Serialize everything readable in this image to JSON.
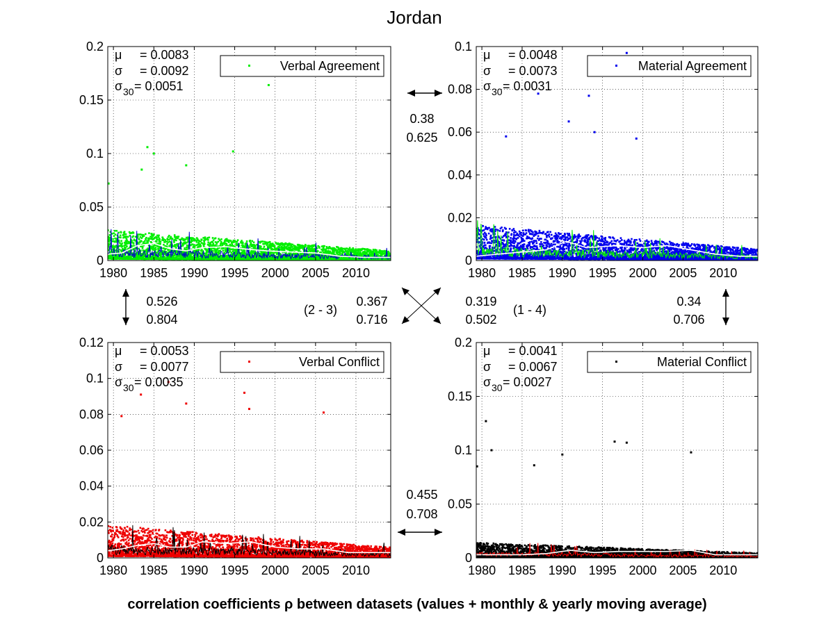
{
  "figure": {
    "title": "Jordan",
    "footer": "correlation coefficients ρ between datasets (values + monthly & yearly moving average)"
  },
  "chart_data": [
    {
      "type": "scatter",
      "id": "verbal-agreement",
      "legend": "Verbal Agreement",
      "color": "#00ee00",
      "overlay_color": "#0000cc",
      "avg_color": "#ffffff",
      "ylim": [
        0,
        0.2
      ],
      "yticks": [
        "0",
        "0.05",
        "0.1",
        "0.15",
        "0.2"
      ],
      "xlim": [
        1979.3,
        2014.3
      ],
      "xticks": [
        "1980",
        "1985",
        "1990",
        "1995",
        "2000",
        "2005",
        "2010"
      ],
      "grid": true,
      "legend_position": "top-right",
      "stats": {
        "mu": "= 0.0083",
        "sigma": "= 0.0092",
        "sigma30": "= 0.0051"
      },
      "baseline": 0.0083,
      "outliers": [
        [
          1979.4,
          0.072
        ],
        [
          1984.2,
          0.106
        ],
        [
          1985.0,
          0.1
        ],
        [
          1989.0,
          0.089
        ],
        [
          1994.8,
          0.102
        ],
        [
          1999.2,
          0.164
        ],
        [
          1983.5,
          0.085
        ]
      ],
      "avg_points": [
        [
          1979.3,
          0.006
        ],
        [
          1981,
          0.007
        ],
        [
          1983,
          0.014
        ],
        [
          1985,
          0.016
        ],
        [
          1987,
          0.011
        ],
        [
          1989,
          0.009
        ],
        [
          1991,
          0.012
        ],
        [
          1994,
          0.013
        ],
        [
          1996,
          0.011
        ],
        [
          1999,
          0.009
        ],
        [
          2002,
          0.008
        ],
        [
          2005,
          0.007
        ],
        [
          2008,
          0.004
        ],
        [
          2011,
          0.003
        ],
        [
          2014.3,
          0.003
        ]
      ]
    },
    {
      "type": "scatter",
      "id": "material-agreement",
      "legend": "Material Agreement",
      "color": "#0000ee",
      "overlay_color": "#00ee00",
      "avg_color": "#ffffff",
      "ylim": [
        0,
        0.1
      ],
      "yticks": [
        "0",
        "0.02",
        "0.04",
        "0.06",
        "0.08",
        "0.1"
      ],
      "xlim": [
        1979.3,
        2014.3
      ],
      "xticks": [
        "1980",
        "1985",
        "1990",
        "1995",
        "2000",
        "2005",
        "2010"
      ],
      "grid": true,
      "legend_position": "top-right",
      "stats": {
        "mu": "= 0.0048",
        "sigma": "= 0.0073",
        "sigma30": "= 0.0031"
      },
      "baseline": 0.0048,
      "outliers": [
        [
          1993.3,
          0.077
        ],
        [
          1990.8,
          0.065
        ],
        [
          1998.0,
          0.097
        ],
        [
          1983.0,
          0.058
        ],
        [
          1994.0,
          0.06
        ],
        [
          1999.2,
          0.057
        ],
        [
          1987.0,
          0.078
        ]
      ],
      "avg_points": [
        [
          1979.3,
          0.002
        ],
        [
          1982,
          0.003
        ],
        [
          1985,
          0.004
        ],
        [
          1988,
          0.005
        ],
        [
          1990.5,
          0.009
        ],
        [
          1993,
          0.006
        ],
        [
          1997,
          0.007
        ],
        [
          2000,
          0.006
        ],
        [
          2003,
          0.007
        ],
        [
          2006,
          0.005
        ],
        [
          2009,
          0.003
        ],
        [
          2012,
          0.002
        ],
        [
          2014.3,
          0.002
        ]
      ]
    },
    {
      "type": "scatter",
      "id": "verbal-conflict",
      "legend": "Verbal Conflict",
      "color": "#ee0000",
      "overlay_color": "#000000",
      "avg_color": "#ffffff",
      "ylim": [
        0,
        0.12
      ],
      "yticks": [
        "0",
        "0.02",
        "0.04",
        "0.06",
        "0.08",
        "0.1",
        "0.12"
      ],
      "xlim": [
        1979.3,
        2014.3
      ],
      "xticks": [
        "1980",
        "1985",
        "1990",
        "1995",
        "2000",
        "2005",
        "2010"
      ],
      "grid": true,
      "legend_position": "top-right",
      "stats": {
        "mu": "= 0.0053",
        "sigma": "= 0.0077",
        "sigma30": "= 0.0035"
      },
      "baseline": 0.0053,
      "outliers": [
        [
          1983.4,
          0.091
        ],
        [
          1986.8,
          0.098
        ],
        [
          1996.2,
          0.092
        ],
        [
          1996.8,
          0.083
        ],
        [
          2006.0,
          0.081
        ],
        [
          1989.0,
          0.086
        ],
        [
          1981.0,
          0.079
        ]
      ],
      "avg_points": [
        [
          1979.3,
          0.004
        ],
        [
          1981,
          0.005
        ],
        [
          1983,
          0.007
        ],
        [
          1985,
          0.008
        ],
        [
          1987,
          0.006
        ],
        [
          1989,
          0.006
        ],
        [
          1991,
          0.009
        ],
        [
          1994,
          0.008
        ],
        [
          1997,
          0.009
        ],
        [
          2000,
          0.006
        ],
        [
          2003,
          0.005
        ],
        [
          2006,
          0.005
        ],
        [
          2009,
          0.003
        ],
        [
          2012,
          0.003
        ],
        [
          2014.3,
          0.003
        ]
      ]
    },
    {
      "type": "scatter",
      "id": "material-conflict",
      "legend": "Material Conflict",
      "color": "#000000",
      "overlay_color": "#ee0000",
      "avg_color": "#ffffff",
      "ylim": [
        0,
        0.2
      ],
      "yticks": [
        "0",
        "0.05",
        "0.1",
        "0.15",
        "0.2"
      ],
      "xlim": [
        1979.3,
        2014.3
      ],
      "xticks": [
        "1980",
        "1985",
        "1990",
        "1995",
        "2000",
        "2005",
        "2010"
      ],
      "grid": true,
      "legend_position": "top-right",
      "stats": {
        "mu": "= 0.0041",
        "sigma": "= 0.0067",
        "sigma30": "= 0.0027"
      },
      "baseline": 0.0041,
      "outliers": [
        [
          1980.5,
          0.127
        ],
        [
          1981.2,
          0.1
        ],
        [
          1996.5,
          0.108
        ],
        [
          1998.0,
          0.107
        ],
        [
          1990.0,
          0.096
        ],
        [
          2006.0,
          0.098
        ],
        [
          1979.4,
          0.085
        ],
        [
          1986.5,
          0.086
        ]
      ],
      "avg_points": [
        [
          1979.3,
          0.003
        ],
        [
          1982,
          0.003
        ],
        [
          1985,
          0.003
        ],
        [
          1988,
          0.004
        ],
        [
          1991,
          0.007
        ],
        [
          1994,
          0.005
        ],
        [
          1997,
          0.006
        ],
        [
          2000,
          0.006
        ],
        [
          2003,
          0.006
        ],
        [
          2006,
          0.007
        ],
        [
          2009,
          0.003
        ],
        [
          2012,
          0.003
        ],
        [
          2014.3,
          0.003
        ]
      ]
    }
  ],
  "correlations": {
    "top": {
      "a": "0.38",
      "b": "0.625"
    },
    "bottom": {
      "a": "0.455",
      "b": "0.708"
    },
    "left": {
      "a": "0.526",
      "b": "0.804"
    },
    "right": {
      "a": "0.34",
      "b": "0.706"
    },
    "diag_2_3": {
      "a": "0.367",
      "b": "0.716",
      "label": "(2 - 3)"
    },
    "diag_1_4": {
      "a": "0.319",
      "b": "0.502",
      "label": "(1 - 4)"
    }
  }
}
